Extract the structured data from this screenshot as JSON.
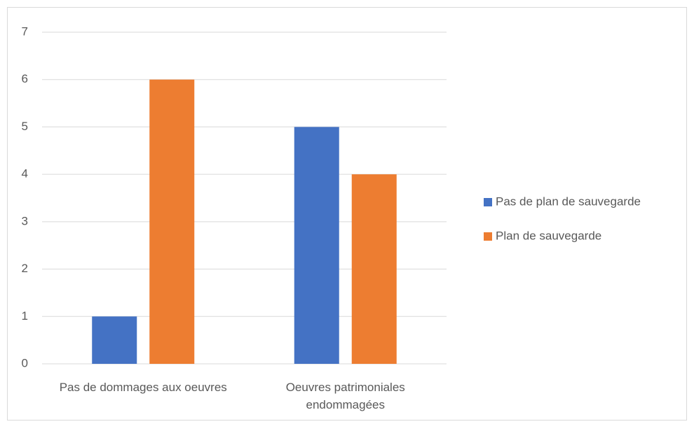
{
  "chart_data": {
    "type": "bar",
    "categories": [
      "Pas de dommages aux oeuvres",
      "Oeuvres patrimoniales endommagées"
    ],
    "series": [
      {
        "name": "Pas de plan de sauvegarde",
        "color": "#4472c4",
        "values": [
          1,
          5
        ]
      },
      {
        "name": "Plan de sauvegarde",
        "color": "#ed7d31",
        "values": [
          6,
          4
        ]
      }
    ],
    "ylim": [
      0,
      7
    ],
    "yticks": [
      0,
      1,
      2,
      3,
      4,
      5,
      6,
      7
    ],
    "grid": true,
    "legend": "right"
  }
}
